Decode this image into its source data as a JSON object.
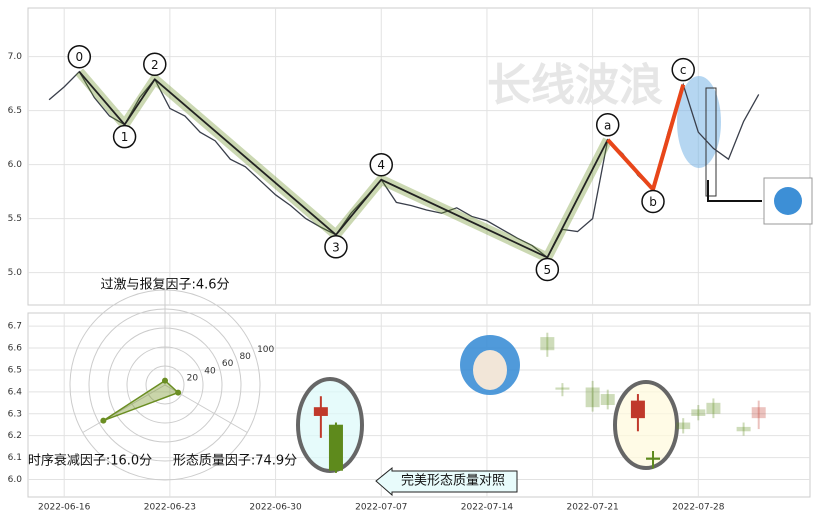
{
  "chart_data": [
    {
      "type": "line",
      "watermark": "长线波浪",
      "color": "#3a3f4b",
      "x": [
        "2022-06-15",
        "2022-06-16",
        "2022-06-17",
        "2022-06-18",
        "2022-06-19",
        "2022-06-20",
        "2022-06-21",
        "2022-06-22",
        "2022-06-23",
        "2022-06-24",
        "2022-06-25",
        "2022-06-26",
        "2022-06-27",
        "2022-06-28",
        "2022-06-29",
        "2022-06-30",
        "2022-07-01",
        "2022-07-02",
        "2022-07-03",
        "2022-07-04",
        "2022-07-05",
        "2022-07-06",
        "2022-07-07",
        "2022-07-08",
        "2022-07-09",
        "2022-07-10",
        "2022-07-11",
        "2022-07-12",
        "2022-07-13",
        "2022-07-14",
        "2022-07-15",
        "2022-07-16",
        "2022-07-17",
        "2022-07-18",
        "2022-07-19",
        "2022-07-20",
        "2022-07-21",
        "2022-07-22",
        "2022-07-23",
        "2022-07-24",
        "2022-07-25",
        "2022-07-26",
        "2022-07-27",
        "2022-07-28",
        "2022-07-29",
        "2022-07-30",
        "2022-07-31",
        "2022-08-01"
      ],
      "values": [
        6.6,
        6.72,
        6.86,
        6.62,
        6.45,
        6.37,
        6.62,
        6.79,
        6.52,
        6.45,
        6.3,
        6.22,
        6.05,
        5.98,
        5.85,
        5.72,
        5.62,
        5.5,
        5.42,
        5.35,
        5.55,
        5.7,
        5.86,
        5.65,
        5.62,
        5.58,
        5.55,
        5.6,
        5.52,
        5.48,
        5.4,
        5.32,
        5.25,
        5.14,
        5.4,
        5.38,
        5.5,
        6.23,
        6.1,
        5.9,
        5.77,
        6.3,
        6.74,
        6.3,
        6.15,
        6.05,
        6.4,
        6.65
      ],
      "xlim": [
        "2022-06-14",
        "2022-08-04"
      ],
      "ylim": [
        4.7,
        7.45
      ],
      "yticks": [
        {
          "value": 5,
          "label": "5.0"
        },
        5.5,
        {
          "value": 6,
          "label": "6.0"
        },
        6.5,
        {
          "value": 7,
          "label": "7.0"
        }
      ],
      "grid": true,
      "waves": {
        "labels": [
          "0",
          "1",
          "2",
          "3",
          "4",
          "5",
          "a",
          "b",
          "c"
        ],
        "x": [
          "2022-06-17",
          "2022-06-20",
          "2022-06-22",
          "2022-07-04",
          "2022-07-07",
          "2022-07-18",
          "2022-07-22",
          "2022-07-25",
          "2022-07-27"
        ],
        "values": [
          6.86,
          6.37,
          6.79,
          5.35,
          5.86,
          5.14,
          6.23,
          5.77,
          6.74
        ],
        "impulse_color": "#222222",
        "correction_color": "#e8461a"
      }
    },
    {
      "type": "radar",
      "categories": [
        "过激与报复因子:4.6分",
        "时序衰减因子:16.0分",
        "形态质量因子:74.9分"
      ],
      "values": [
        4.6,
        16.0,
        74.9
      ],
      "rlim": [
        0,
        100
      ],
      "rticks": [
        20,
        40,
        60,
        80,
        100
      ],
      "color": "#6b8e23"
    },
    {
      "type": "candlestick",
      "up_color": "#c0392b",
      "down_color": "#5e8a1c",
      "candle_sets": [
        {
          "opacity": 1,
          "x": [
            "2022-07-03",
            "2022-07-04",
            "2022-07-24",
            "2022-07-25"
          ],
          "open": [
            6.29,
            6.25,
            6.28,
            6.1
          ],
          "high": [
            6.38,
            6.26,
            6.39,
            6.13
          ],
          "low": [
            6.19,
            6.03,
            6.22,
            6.05
          ],
          "close": [
            6.33,
            6.04,
            6.36,
            6.09
          ]
        },
        {
          "opacity": 0.3,
          "x": [
            "2022-07-18",
            "2022-07-19",
            "2022-07-21",
            "2022-07-22",
            "2022-07-27",
            "2022-07-28",
            "2022-07-29",
            "2022-07-31",
            "2022-08-01"
          ],
          "open": [
            6.65,
            6.42,
            6.42,
            6.39,
            6.26,
            6.32,
            6.35,
            6.24,
            6.28
          ],
          "high": [
            6.67,
            6.44,
            6.45,
            6.41,
            6.28,
            6.34,
            6.37,
            6.26,
            6.36
          ],
          "low": [
            6.56,
            6.38,
            6.31,
            6.32,
            6.21,
            6.27,
            6.28,
            6.2,
            6.23
          ],
          "close": [
            6.59,
            6.41,
            6.33,
            6.34,
            6.23,
            6.29,
            6.3,
            6.22,
            6.33
          ]
        }
      ],
      "xlim": [
        "2022-06-14",
        "2022-08-04"
      ],
      "xticks": [
        "2022-06-16",
        "2022-06-23",
        "2022-06-30",
        "2022-07-07",
        "2022-07-14",
        "2022-07-21",
        "2022-07-28"
      ],
      "ylim": [
        5.92,
        6.76
      ],
      "yticks": [
        {
          "value": 6,
          "label": "6.0"
        },
        6.1,
        6.2,
        6.3,
        6.4,
        6.5,
        6.6,
        6.7
      ],
      "grid": true
    }
  ],
  "button": {
    "label": "完美形态质量对照"
  }
}
